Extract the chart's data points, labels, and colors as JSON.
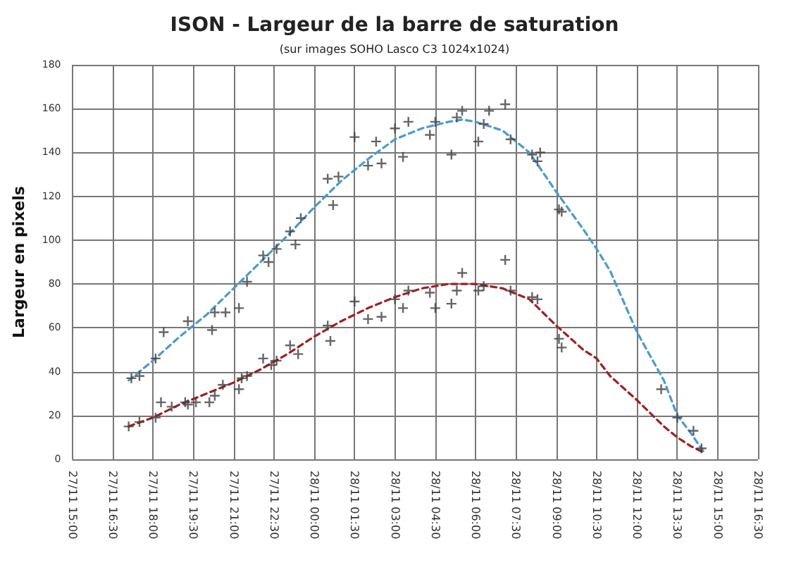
{
  "chart_data": {
    "type": "scatter",
    "title": "ISON - Largeur de la barre de saturation",
    "subtitle": "(sur images SOHO Lasco C3 1024x1024)",
    "ylabel": "Largeur en pixels",
    "xlim": [
      "--11-27T15:00",
      "--11-28T16:30"
    ],
    "xticks": [
      {
        "value": "--11-27T15:00",
        "label": "27/11 15:00"
      },
      {
        "value": "--11-27T16:30",
        "label": "27/11 16:30"
      },
      {
        "value": "--11-27T18:00",
        "label": "27/11 18:00"
      },
      {
        "value": "--11-27T19:30",
        "label": "27/11 19:30"
      },
      {
        "value": "--11-27T21:00",
        "label": "27/11 21:00"
      },
      {
        "value": "--11-27T22:30",
        "label": "27/11 22:30"
      },
      {
        "value": "--11-28T00:00",
        "label": "28/11 00:00"
      },
      {
        "value": "--11-28T01:30",
        "label": "28/11 01:30"
      },
      {
        "value": "--11-28T03:00",
        "label": "28/11 03:00"
      },
      {
        "value": "--11-28T04:30",
        "label": "28/11 04:30"
      },
      {
        "value": "--11-28T06:00",
        "label": "28/11 06:00"
      },
      {
        "value": "--11-28T07:30",
        "label": "28/11 07:30"
      },
      {
        "value": "--11-28T09:00",
        "label": "28/11 09:00"
      },
      {
        "value": "--11-28T10:30",
        "label": "28/11 10:30"
      },
      {
        "value": "--11-28T12:00",
        "label": "28/11 12:00"
      },
      {
        "value": "--11-28T13:30",
        "label": "28/11 13:30"
      },
      {
        "value": "--11-28T15:00",
        "label": "28/11 15:00"
      },
      {
        "value": "--11-28T16:30",
        "label": "28/11 16:30"
      }
    ],
    "ylim": [
      0,
      180
    ],
    "yticks": [
      0,
      20,
      40,
      60,
      80,
      100,
      120,
      140,
      160,
      180
    ],
    "grid": true,
    "marker": "cross",
    "line_style": "dashed",
    "series": [
      {
        "color": "#404040",
        "x": [
          "--11-27T17:12",
          "--11-27T17:30",
          "--11-27T18:06",
          "--11-27T18:24",
          "--11-27T19:18",
          "--11-27T20:12",
          "--11-27T20:18",
          "--11-27T20:42",
          "--11-27T21:12",
          "--11-27T21:30",
          "--11-27T22:06",
          "--11-27T22:18",
          "--11-27T22:36",
          "--11-27T23:06",
          "--11-27T23:18",
          "--11-27T23:30",
          "--11-28T00:30",
          "--11-28T00:42",
          "--11-28T00:54",
          "--11-28T01:30",
          "--11-28T02:00",
          "--11-28T02:18",
          "--11-28T02:30",
          "--11-28T03:00",
          "--11-28T03:18",
          "--11-28T03:30",
          "--11-28T04:18",
          "--11-28T04:30",
          "--11-28T05:06",
          "--11-28T05:18",
          "--11-28T05:30",
          "--11-28T06:06",
          "--11-28T06:18",
          "--11-28T06:30",
          "--11-28T07:06",
          "--11-28T07:18",
          "--11-28T08:06",
          "--11-28T08:18",
          "--11-28T08:24",
          "--11-28T09:06",
          "--11-28T09:12",
          "--11-28T12:54",
          "--11-28T13:30",
          "--11-28T14:06",
          "--11-28T14:24"
        ],
        "values": [
          37,
          38,
          46,
          58,
          63,
          59,
          67,
          67,
          69,
          81,
          93,
          90,
          96,
          104,
          98,
          110,
          128,
          116,
          129,
          147,
          134,
          145,
          135,
          151,
          138,
          154,
          148,
          154,
          139,
          156,
          159,
          145,
          153,
          159,
          162,
          146,
          139,
          136,
          140,
          114,
          113,
          32,
          19,
          13,
          5
        ]
      },
      {
        "color": "#404040",
        "x": [
          "--11-27T17:06",
          "--11-27T17:30",
          "--11-27T18:06",
          "--11-27T18:18",
          "--11-27T18:42",
          "--11-27T19:12",
          "--11-27T19:18",
          "--11-27T19:36",
          "--11-27T20:06",
          "--11-27T20:18",
          "--11-27T20:36",
          "--11-27T21:12",
          "--11-27T21:18",
          "--11-27T21:30",
          "--11-27T22:06",
          "--11-27T22:24",
          "--11-27T22:36",
          "--11-27T23:06",
          "--11-27T23:24",
          "--11-28T00:30",
          "--11-28T00:36",
          "--11-28T01:30",
          "--11-28T02:00",
          "--11-28T02:30",
          "--11-28T03:00",
          "--11-28T03:18",
          "--11-28T03:30",
          "--11-28T04:18",
          "--11-28T04:30",
          "--11-28T05:06",
          "--11-28T05:18",
          "--11-28T05:30",
          "--11-28T06:06",
          "--11-28T06:18",
          "--11-28T07:06",
          "--11-28T07:18",
          "--11-28T08:06",
          "--11-28T08:18",
          "--11-28T09:06",
          "--11-28T09:12"
        ],
        "values": [
          15,
          17,
          19,
          26,
          24,
          26,
          25,
          26,
          26,
          29,
          34,
          32,
          37,
          38,
          46,
          43,
          45,
          52,
          48,
          61,
          54,
          72,
          64,
          65,
          73,
          69,
          77,
          76,
          69,
          71,
          77,
          85,
          77,
          79,
          91,
          77,
          74,
          73,
          55,
          51
        ]
      },
      {
        "type": "line",
        "marker": "none",
        "color": "#4a9ad0",
        "x": [
          "--11-27T17:06",
          "--11-27T18:00",
          "--11-27T19:00",
          "--11-27T20:00",
          "--11-27T21:00",
          "--11-27T22:00",
          "--11-27T23:00",
          "--11-28T00:00",
          "--11-28T01:00",
          "--11-28T02:00",
          "--11-28T03:00",
          "--11-28T04:00",
          "--11-28T05:00",
          "--11-28T05:30",
          "--11-28T06:00",
          "--11-28T07:00",
          "--11-28T08:00",
          "--11-28T09:00",
          "--11-28T10:00",
          "--11-28T10:30",
          "--11-28T11:00",
          "--11-28T12:00",
          "--11-28T13:00",
          "--11-28T13:30",
          "--11-28T14:00",
          "--11-28T14:30"
        ],
        "values": [
          36,
          45,
          56,
          66,
          78,
          90,
          102,
          115,
          127,
          137,
          146,
          151,
          154,
          155,
          154,
          150,
          140,
          122,
          105,
          96,
          86,
          58,
          36,
          20,
          12,
          3
        ]
      },
      {
        "type": "line",
        "marker": "none",
        "color": "#a02020",
        "x": [
          "--11-27T17:06",
          "--11-27T18:00",
          "--11-27T19:00",
          "--11-27T20:00",
          "--11-27T21:00",
          "--11-27T22:00",
          "--11-27T23:00",
          "--11-28T00:00",
          "--11-28T01:00",
          "--11-28T02:00",
          "--11-28T03:00",
          "--11-28T04:00",
          "--11-28T05:00",
          "--11-28T06:00",
          "--11-28T07:00",
          "--11-28T08:00",
          "--11-28T09:00",
          "--11-28T10:00",
          "--11-28T10:30",
          "--11-28T11:00",
          "--11-28T12:00",
          "--11-28T13:00",
          "--11-28T13:30",
          "--11-28T14:00",
          "--11-28T14:30"
        ],
        "values": [
          15,
          19,
          25,
          30,
          35,
          41,
          48,
          56,
          63,
          69,
          74,
          78,
          80,
          80,
          78,
          73,
          61,
          50,
          46,
          38,
          27,
          15,
          10,
          6,
          3
        ]
      }
    ]
  }
}
